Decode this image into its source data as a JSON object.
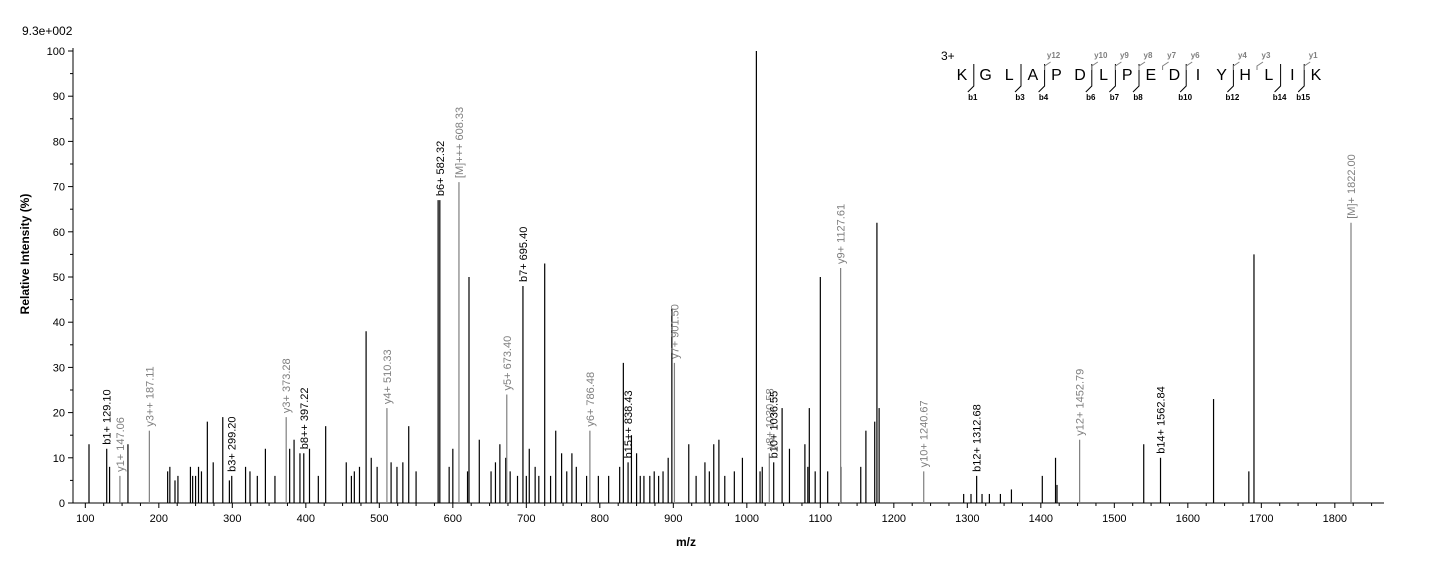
{
  "chart_data": {
    "type": "bar",
    "scale_label": "9.3e+002",
    "xlabel": "m/z",
    "ylabel": "Relative   Intensity (%)",
    "xlim": [
      90,
      1860
    ],
    "ylim": [
      0,
      100
    ],
    "xticks": [
      100,
      200,
      300,
      400,
      500,
      600,
      700,
      800,
      900,
      1000,
      1100,
      1200,
      1300,
      1400,
      1500,
      1600,
      1700,
      1800
    ],
    "yticks": [
      0,
      10,
      20,
      30,
      40,
      50,
      60,
      70,
      80,
      90,
      100
    ],
    "colors": {
      "b_ion": "#000000",
      "y_ion": "#7f7f7f",
      "unmatched": "#000000"
    },
    "unmatched_peaks": [
      [
        105,
        13
      ],
      [
        133,
        8
      ],
      [
        158,
        13
      ],
      [
        212,
        7
      ],
      [
        215,
        8
      ],
      [
        222,
        5
      ],
      [
        226,
        6
      ],
      [
        243,
        8
      ],
      [
        246,
        6
      ],
      [
        250,
        6
      ],
      [
        254,
        8
      ],
      [
        258,
        7
      ],
      [
        266,
        18
      ],
      [
        274,
        9
      ],
      [
        287,
        19
      ],
      [
        296,
        5
      ],
      [
        318,
        8
      ],
      [
        324,
        7
      ],
      [
        334,
        6
      ],
      [
        345,
        12
      ],
      [
        358,
        6
      ],
      [
        378,
        12
      ],
      [
        384,
        14
      ],
      [
        392,
        11
      ],
      [
        405,
        12
      ],
      [
        417,
        6
      ],
      [
        427,
        17
      ],
      [
        455,
        9
      ],
      [
        462,
        6
      ],
      [
        466,
        7
      ],
      [
        473,
        8
      ],
      [
        482,
        38
      ],
      [
        489,
        10
      ],
      [
        497,
        8
      ],
      [
        516,
        9
      ],
      [
        524,
        8
      ],
      [
        532,
        9
      ],
      [
        540,
        17
      ],
      [
        550,
        7
      ],
      [
        580,
        67
      ],
      [
        595,
        8
      ],
      [
        600,
        12
      ],
      [
        620,
        7
      ],
      [
        622,
        50
      ],
      [
        636,
        14
      ],
      [
        652,
        7
      ],
      [
        658,
        9
      ],
      [
        664,
        13
      ],
      [
        672,
        10
      ],
      [
        678,
        7
      ],
      [
        688,
        6
      ],
      [
        700,
        6
      ],
      [
        704,
        12
      ],
      [
        712,
        8
      ],
      [
        717,
        6
      ],
      [
        725,
        53
      ],
      [
        733,
        6
      ],
      [
        740,
        16
      ],
      [
        748,
        11
      ],
      [
        755,
        7
      ],
      [
        762,
        11
      ],
      [
        768,
        8
      ],
      [
        782,
        6
      ],
      [
        798,
        6
      ],
      [
        812,
        6
      ],
      [
        827,
        8
      ],
      [
        832,
        31
      ],
      [
        843,
        15
      ],
      [
        850,
        11
      ],
      [
        855,
        6
      ],
      [
        860,
        6
      ],
      [
        868,
        6
      ],
      [
        874,
        7
      ],
      [
        880,
        6
      ],
      [
        886,
        7
      ],
      [
        893,
        10
      ],
      [
        898,
        43
      ],
      [
        921,
        13
      ],
      [
        931,
        6
      ],
      [
        943,
        9
      ],
      [
        949,
        7
      ],
      [
        955,
        13
      ],
      [
        962,
        14
      ],
      [
        970,
        6
      ],
      [
        983,
        7
      ],
      [
        994,
        10
      ],
      [
        1013,
        100
      ],
      [
        1018,
        7
      ],
      [
        1021,
        8
      ],
      [
        1048,
        21
      ],
      [
        1058,
        12
      ],
      [
        1079,
        13
      ],
      [
        1083,
        8
      ],
      [
        1085,
        21
      ],
      [
        1093,
        7
      ],
      [
        1100,
        50
      ],
      [
        1110,
        7
      ],
      [
        1128,
        8
      ],
      [
        1155,
        8
      ],
      [
        1162,
        16
      ],
      [
        1174,
        18
      ],
      [
        1177,
        62
      ],
      [
        1180,
        21
      ],
      [
        1295,
        2
      ],
      [
        1305,
        2
      ],
      [
        1320,
        2
      ],
      [
        1330,
        2
      ],
      [
        1345,
        2
      ],
      [
        1360,
        3
      ],
      [
        1402,
        6
      ],
      [
        1420,
        10
      ],
      [
        1422,
        4
      ],
      [
        1540,
        13
      ],
      [
        1635,
        23
      ],
      [
        1683,
        7
      ],
      [
        1690,
        55
      ]
    ],
    "labeled_peaks": [
      {
        "x": 129.1,
        "y": 12,
        "ion": "b",
        "label": "b1+ 129.10"
      },
      {
        "x": 147.06,
        "y": 6,
        "ion": "y",
        "label": "y1+ 147.06"
      },
      {
        "x": 187.11,
        "y": 16,
        "ion": "y",
        "label": "y3++ 187.11"
      },
      {
        "x": 299.2,
        "y": 6,
        "ion": "b",
        "label": "b3+ 299.20"
      },
      {
        "x": 373.28,
        "y": 19,
        "ion": "y",
        "label": "y3+ 373.28"
      },
      {
        "x": 397.22,
        "y": 11,
        "ion": "b",
        "label": "b8++ 397.22"
      },
      {
        "x": 510.33,
        "y": 21,
        "ion": "y",
        "label": "y4+ 510.33"
      },
      {
        "x": 582.32,
        "y": 67,
        "ion": "b",
        "label": "b6+ 582.32"
      },
      {
        "x": 608.33,
        "y": 71,
        "ion": "y",
        "label": "[M]+++ 608.33"
      },
      {
        "x": 673.4,
        "y": 24,
        "ion": "y",
        "label": "y5+ 673.40"
      },
      {
        "x": 695.4,
        "y": 48,
        "ion": "b",
        "label": "b7+ 695.40"
      },
      {
        "x": 786.48,
        "y": 16,
        "ion": "y",
        "label": "y6+ 786.48"
      },
      {
        "x": 838.43,
        "y": 9,
        "ion": "b",
        "label": "b15++ 838.43"
      },
      {
        "x": 901.5,
        "y": 31,
        "ion": "y",
        "label": "y7+ 901.50"
      },
      {
        "x": 1030.58,
        "y": 11,
        "ion": "y",
        "label": "y8+ 1030.58"
      },
      {
        "x": 1036.55,
        "y": 9,
        "ion": "b",
        "label": "b10+ 1036.55"
      },
      {
        "x": 1127.61,
        "y": 52,
        "ion": "y",
        "label": "y9+ 1127.61"
      },
      {
        "x": 1240.67,
        "y": 7,
        "ion": "y",
        "label": "y10+ 1240.67"
      },
      {
        "x": 1312.68,
        "y": 6,
        "ion": "b",
        "label": "b12+ 1312.68"
      },
      {
        "x": 1452.79,
        "y": 14,
        "ion": "y",
        "label": "y12+ 1452.79"
      },
      {
        "x": 1562.84,
        "y": 10,
        "ion": "b",
        "label": "b14+ 1562.84"
      },
      {
        "x": 1822.0,
        "y": 62,
        "ion": "y",
        "label": "[M]+ 1822.00"
      }
    ],
    "sequence": {
      "charge": "3+",
      "residues": [
        "K",
        "G",
        "L",
        "A",
        "P",
        "D",
        "L",
        "P",
        "E",
        "D",
        "I",
        "Y",
        "H",
        "L",
        "I",
        "K"
      ],
      "b_ions": [
        {
          "after": 1,
          "label": "b1"
        },
        {
          "after": 3,
          "label": "b3"
        },
        {
          "after": 4,
          "label": "b4"
        },
        {
          "after": 6,
          "label": "b6"
        },
        {
          "after": 7,
          "label": "b7"
        },
        {
          "after": 8,
          "label": "b8"
        },
        {
          "after": 10,
          "label": "b10"
        },
        {
          "after": 12,
          "label": "b12"
        },
        {
          "after": 14,
          "label": "b14"
        },
        {
          "after": 15,
          "label": "b15"
        }
      ],
      "y_ions": [
        {
          "after": 4,
          "label": "y12"
        },
        {
          "after": 6,
          "label": "y10"
        },
        {
          "after": 7,
          "label": "y9"
        },
        {
          "after": 8,
          "label": "y8"
        },
        {
          "after": 9,
          "label": "y7"
        },
        {
          "after": 10,
          "label": "y6"
        },
        {
          "after": 12,
          "label": "y4"
        },
        {
          "after": 13,
          "label": "y3"
        },
        {
          "after": 15,
          "label": "y1"
        }
      ]
    }
  }
}
